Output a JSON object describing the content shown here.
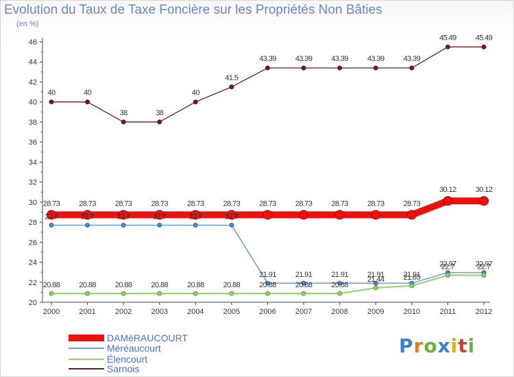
{
  "chart_data": {
    "type": "line",
    "title": "Evolution du Taux de Taxe Foncière sur les Propriétés Non Bâties",
    "subtitle": "(en %)",
    "x": [
      "2000",
      "2001",
      "2002",
      "2003",
      "2004",
      "2005",
      "2006",
      "2007",
      "2008",
      "2009",
      "2010",
      "2011",
      "2012"
    ],
    "ylim": [
      20,
      46
    ],
    "yticks": [
      20,
      22,
      24,
      26,
      28,
      30,
      32,
      34,
      36,
      38,
      40,
      42,
      44,
      46
    ],
    "grid": false,
    "series": [
      {
        "name": "Sarnois",
        "color": "#6b1a1e",
        "values": [
          40,
          40,
          38,
          38,
          40,
          41.5,
          43.39,
          43.39,
          43.39,
          43.39,
          43.39,
          45.49,
          45.49
        ],
        "labels": [
          "40",
          "40",
          "38",
          "38",
          "40",
          "41.5",
          "43.39",
          "43.39",
          "43.39",
          "43.39",
          "43.39",
          "45.49",
          "45.49"
        ]
      },
      {
        "name": "DAMéRAUCOURT",
        "color": "#ee1111",
        "values": [
          28.73,
          28.73,
          28.73,
          28.73,
          28.73,
          28.73,
          28.73,
          28.73,
          28.73,
          28.73,
          28.73,
          30.12,
          30.12
        ],
        "labels": [
          "28.73",
          "28.73",
          "28.73",
          "28.73",
          "28.73",
          "28.73",
          "28.73",
          "28.73",
          "28.73",
          "28.73",
          "28.73",
          "30.12",
          "30.12"
        ]
      },
      {
        "name": "Méréaucourt",
        "color": "#6a9ad0",
        "values": [
          27.7,
          27.7,
          27.7,
          27.7,
          27.7,
          27.7,
          21.91,
          21.91,
          21.91,
          21.91,
          21.91,
          22.97,
          22.97
        ],
        "labels": [
          "27.7",
          "27.7",
          "27.7",
          "27.7",
          "27.7",
          "27.7",
          "21.91",
          "21.91",
          "21.91",
          "21.91",
          "21.91",
          "22.97",
          "22.97"
        ]
      },
      {
        "name": "Élencourt",
        "color": "#90d070",
        "values": [
          20.88,
          20.88,
          20.88,
          20.88,
          20.88,
          20.88,
          20.88,
          20.88,
          20.88,
          21.44,
          21.65,
          22.7,
          22.7
        ],
        "labels": [
          "20.88",
          "20.88",
          "20.88",
          "20.88",
          "20.88",
          "20.88",
          "20.88",
          "20.88",
          "20.88",
          "21.44",
          "21.65",
          "22.7",
          "22.7"
        ]
      }
    ],
    "legend": [
      "DAMéRAUCOURT",
      "Méréaucourt",
      "Élencourt",
      "Sarnois"
    ]
  },
  "logo": {
    "text": "Proxiti"
  }
}
